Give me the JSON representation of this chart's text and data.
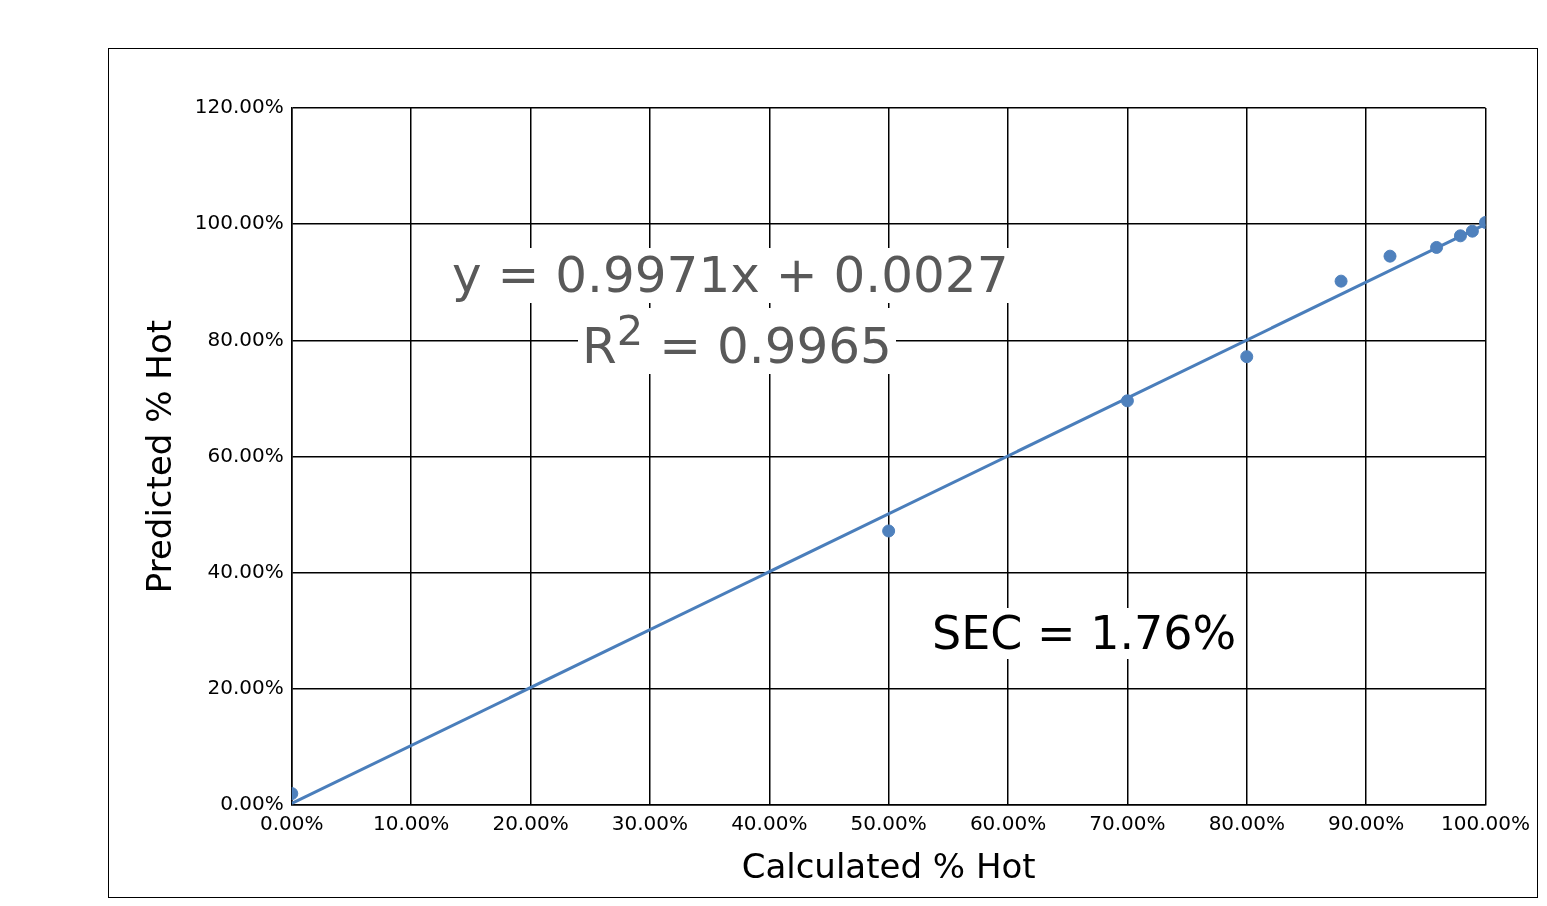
{
  "chart_data": {
    "type": "scatter",
    "xlabel": "Calculated % Hot",
    "ylabel": "Predicted % Hot",
    "series": [
      {
        "type": "scatter",
        "color": "#4f81bd",
        "x": [
          0,
          50,
          70,
          80,
          87.9,
          92,
          95.9,
          97.9,
          98.9,
          100
        ],
        "values": [
          2,
          47.2,
          69.6,
          77.2,
          90.2,
          94.5,
          96,
          98,
          98.8,
          100.3
        ],
        "marker": "circle"
      },
      {
        "type": "line",
        "color": "#4a7ebb",
        "x": [
          0,
          100
        ],
        "values": [
          0.3,
          100
        ],
        "line_style": "solid",
        "marker": "none"
      }
    ],
    "xlim": [
      0,
      100
    ],
    "ylim": [
      0,
      120
    ],
    "xticks": [
      {
        "value": 0,
        "label": "0.00%"
      },
      {
        "value": 10,
        "label": "10.00%"
      },
      {
        "value": 20,
        "label": "20.00%"
      },
      {
        "value": 30,
        "label": "30.00%"
      },
      {
        "value": 40,
        "label": "40.00%"
      },
      {
        "value": 50,
        "label": "50.00%"
      },
      {
        "value": 60,
        "label": "60.00%"
      },
      {
        "value": 70,
        "label": "70.00%"
      },
      {
        "value": 80,
        "label": "80.00%"
      },
      {
        "value": 90,
        "label": "90.00%"
      },
      {
        "value": 100,
        "label": "100.00%"
      }
    ],
    "yticks": [
      {
        "value": 0,
        "label": "0.00%"
      },
      {
        "value": 20,
        "label": "20.00%"
      },
      {
        "value": 40,
        "label": "40.00%"
      },
      {
        "value": 60,
        "label": "60.00%"
      },
      {
        "value": 80,
        "label": "80.00%"
      },
      {
        "value": 100,
        "label": "100.00%"
      },
      {
        "value": 120,
        "label": "120.00%"
      }
    ],
    "grid": true,
    "legend": false,
    "annotations": [
      "y = 0.9971x + 0.0027",
      "R$^{2}$ = 0.9965",
      "SEC = 1.76%"
    ]
  }
}
